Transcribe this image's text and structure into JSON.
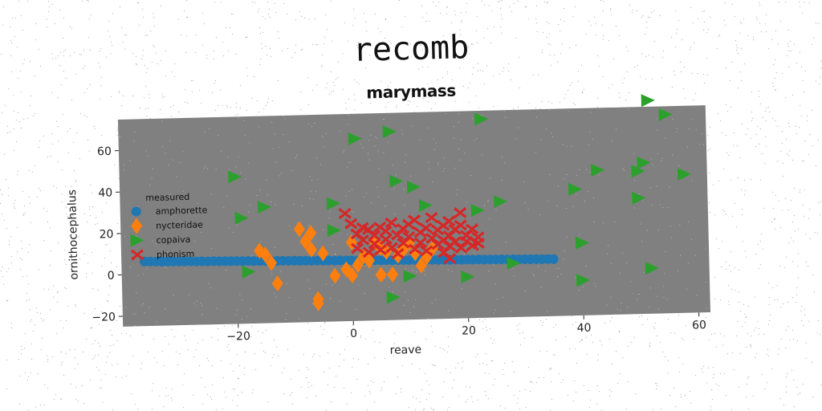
{
  "page": {
    "title": "recomb",
    "subtitle": "marymass"
  },
  "colors": {
    "background": "#ffffff",
    "plot_background": "#808080",
    "amphorette": "#1f77b4",
    "nycteridae": "#ff7f0e",
    "copaiva": "#2ca02c",
    "phonism": "#d62728"
  },
  "chart_data": {
    "type": "scatter",
    "title": "recomb",
    "subtitle": "marymass",
    "xlabel": "reave",
    "ylabel": "ornithocephalus",
    "xlim": [
      -40,
      62
    ],
    "ylim": [
      -25,
      75
    ],
    "xticks": [
      -20,
      0,
      20,
      40,
      60
    ],
    "yticks": [
      -20,
      0,
      20,
      40,
      60
    ],
    "grid": false,
    "legend": {
      "title": "measured",
      "placement": "center-left"
    },
    "series": [
      {
        "name": "amphorette",
        "marker": "circle",
        "points": [
          [
            -36,
            6.2
          ],
          [
            -35,
            6.1
          ],
          [
            -34,
            6.0
          ],
          [
            -33,
            5.9
          ],
          [
            -32,
            5.9
          ],
          [
            -31,
            5.8
          ],
          [
            -30,
            5.8
          ],
          [
            -29,
            5.7
          ],
          [
            -28,
            5.7
          ],
          [
            -27,
            5.6
          ],
          [
            -26,
            5.6
          ],
          [
            -25,
            5.5
          ],
          [
            -24,
            5.5
          ],
          [
            -23,
            5.4
          ],
          [
            -22,
            5.4
          ],
          [
            -21,
            5.3
          ],
          [
            -20,
            5.3
          ],
          [
            -19,
            5.2
          ],
          [
            -18,
            5.2
          ],
          [
            -17,
            5.1
          ],
          [
            -16,
            5.1
          ],
          [
            -15,
            5.0
          ],
          [
            -14,
            5.0
          ],
          [
            -13,
            4.9
          ],
          [
            -12,
            4.9
          ],
          [
            -11,
            4.8
          ],
          [
            -10,
            4.8
          ],
          [
            -9,
            4.7
          ],
          [
            -8,
            4.7
          ],
          [
            -7,
            4.6
          ],
          [
            -6,
            4.6
          ],
          [
            -5,
            4.5
          ],
          [
            -4,
            4.5
          ],
          [
            -3,
            4.4
          ],
          [
            -2,
            4.4
          ],
          [
            -1,
            4.3
          ],
          [
            0,
            4.3
          ],
          [
            1,
            4.2
          ],
          [
            2,
            4.2
          ],
          [
            3,
            4.1
          ],
          [
            4,
            4.1
          ],
          [
            5,
            4.0
          ],
          [
            6,
            4.0
          ],
          [
            7,
            3.9
          ],
          [
            8,
            3.9
          ],
          [
            9,
            3.8
          ],
          [
            10,
            3.8
          ],
          [
            11,
            3.7
          ],
          [
            12,
            3.7
          ],
          [
            13,
            3.6
          ],
          [
            14,
            3.6
          ],
          [
            15,
            3.5
          ],
          [
            16,
            3.5
          ],
          [
            17,
            3.4
          ],
          [
            18,
            3.4
          ],
          [
            19,
            3.3
          ],
          [
            20,
            3.3
          ],
          [
            21,
            3.2
          ],
          [
            22,
            3.2
          ],
          [
            23,
            3.1
          ],
          [
            24,
            3.1
          ],
          [
            25,
            3.0
          ],
          [
            26,
            3.0
          ],
          [
            27,
            2.9
          ],
          [
            28,
            2.9
          ],
          [
            29,
            2.8
          ],
          [
            30,
            2.8
          ],
          [
            31,
            2.7
          ],
          [
            32,
            2.7
          ],
          [
            33,
            2.6
          ],
          [
            34,
            2.6
          ],
          [
            35,
            2.5
          ]
        ]
      },
      {
        "name": "nycteridae",
        "marker": "diamond",
        "points": [
          [
            -16,
            10
          ],
          [
            -15,
            8
          ],
          [
            -14,
            4
          ],
          [
            -13,
            -6
          ],
          [
            -9,
            20
          ],
          [
            -8,
            14
          ],
          [
            -7,
            18
          ],
          [
            -7,
            10
          ],
          [
            -6,
            -16
          ],
          [
            -6,
            -14
          ],
          [
            -5,
            8
          ],
          [
            -3,
            -3
          ],
          [
            -1,
            0
          ],
          [
            0,
            -3
          ],
          [
            0,
            13
          ],
          [
            1,
            2
          ],
          [
            2,
            6
          ],
          [
            3,
            4
          ],
          [
            4,
            13
          ],
          [
            5,
            10
          ],
          [
            5,
            -3
          ],
          [
            6,
            8
          ],
          [
            7,
            -3
          ],
          [
            8,
            6
          ],
          [
            9,
            9
          ],
          [
            10,
            12
          ],
          [
            11,
            7
          ],
          [
            12,
            1
          ],
          [
            13,
            5
          ],
          [
            14,
            9
          ]
        ]
      },
      {
        "name": "copaiva",
        "marker": "triangle-right",
        "points": [
          [
            -20,
            46
          ],
          [
            -19,
            26
          ],
          [
            -18,
            0
          ],
          [
            -15,
            31
          ],
          [
            -3,
            32
          ],
          [
            -3,
            19
          ],
          [
            1,
            63
          ],
          [
            7,
            66
          ],
          [
            7,
            -14
          ],
          [
            8,
            42
          ],
          [
            10,
            -4
          ],
          [
            11,
            39
          ],
          [
            13,
            30
          ],
          [
            20,
            -5
          ],
          [
            22,
            27
          ],
          [
            23,
            71
          ],
          [
            26,
            31
          ],
          [
            28,
            1
          ],
          [
            39,
            36
          ],
          [
            40,
            10
          ],
          [
            40,
            -8
          ],
          [
            43,
            45
          ],
          [
            50,
            44
          ],
          [
            50,
            31
          ],
          [
            51,
            48
          ],
          [
            52,
            78
          ],
          [
            52,
            -3
          ],
          [
            55,
            71
          ],
          [
            58,
            42
          ]
        ]
      },
      {
        "name": "phonism",
        "marker": "x",
        "points": [
          [
            -1,
            27
          ],
          [
            0,
            22
          ],
          [
            1,
            17
          ],
          [
            1,
            10
          ],
          [
            2,
            20
          ],
          [
            2,
            14
          ],
          [
            3,
            8
          ],
          [
            3,
            19
          ],
          [
            4,
            12
          ],
          [
            4,
            16
          ],
          [
            5,
            20
          ],
          [
            5,
            9
          ],
          [
            6,
            14
          ],
          [
            6,
            18
          ],
          [
            7,
            10
          ],
          [
            7,
            22
          ],
          [
            8,
            16
          ],
          [
            8,
            7
          ],
          [
            9,
            19
          ],
          [
            9,
            12
          ],
          [
            10,
            21
          ],
          [
            10,
            15
          ],
          [
            11,
            9
          ],
          [
            11,
            23
          ],
          [
            12,
            17
          ],
          [
            12,
            12
          ],
          [
            13,
            19
          ],
          [
            13,
            8
          ],
          [
            14,
            14
          ],
          [
            14,
            24
          ],
          [
            15,
            18
          ],
          [
            15,
            11
          ],
          [
            16,
            20
          ],
          [
            16,
            13
          ],
          [
            16,
            7
          ],
          [
            17,
            22
          ],
          [
            17,
            15
          ],
          [
            17,
            10
          ],
          [
            18,
            18
          ],
          [
            18,
            12
          ],
          [
            19,
            26
          ],
          [
            19,
            20
          ],
          [
            19,
            9
          ],
          [
            20,
            15
          ],
          [
            20,
            12
          ],
          [
            21,
            18
          ],
          [
            21,
            10
          ],
          [
            22,
            14
          ],
          [
            22,
            11
          ],
          [
            17,
            4
          ]
        ]
      }
    ]
  }
}
